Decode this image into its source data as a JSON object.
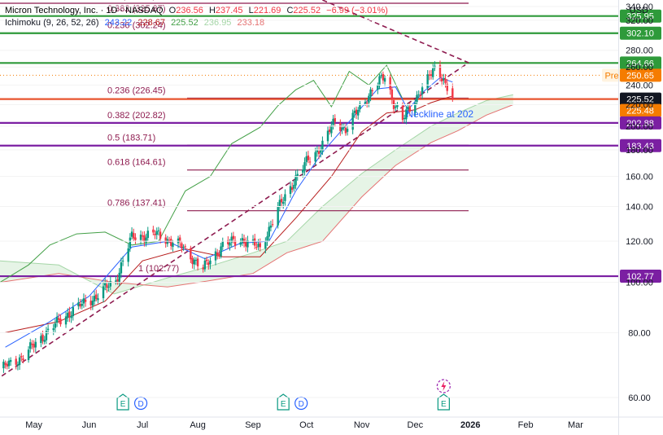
{
  "header": {
    "symbol_line": "Micron Technology, Inc. · 1D · NASDAQ",
    "ohlc": {
      "o_label": "O",
      "o": "236.56",
      "h_label": "H",
      "h": "237.45",
      "l_label": "L",
      "l": "221.69",
      "c_label": "C",
      "c": "225.52",
      "change": "−6.99 (−3.01%)"
    },
    "ichimoku_label": "Ichimoku (9, 26, 52, 26)",
    "ichimoku_values": [
      "243.22",
      "228.67",
      "225.52",
      "236.95",
      "233.18"
    ],
    "ichimoku_colors": [
      "#2962ff",
      "#b71c1c",
      "#43a047",
      "#a5d6a7",
      "#e57373"
    ]
  },
  "currency": "USD",
  "colors": {
    "up": "#089981",
    "down": "#f23645",
    "green_level": "#2e9a3a",
    "purple_level": "#7b1fa2",
    "maroon_level": "#8e1b4f",
    "orange": "#f57c00",
    "tenkan": "#2962ff",
    "kijun": "#b71c1c",
    "chikou": "#43a047",
    "cloud_fill": "#e6f4e6",
    "cloud_red_fill": "#fbe0e0",
    "trend": "#8e1b4f",
    "neckline_text": "#2962ff"
  },
  "chart_data": {
    "type": "candlestick",
    "title": "Micron Technology, Inc. · 1D · NASDAQ",
    "ylim": [
      55,
      350
    ],
    "y_scale": "log",
    "x_range": [
      "2025-04-12",
      "2026-03-25"
    ],
    "x_ticks": [
      {
        "label": "May",
        "date": "2025-05-01"
      },
      {
        "label": "Jun",
        "date": "2025-06-01"
      },
      {
        "label": "Jul",
        "date": "2025-07-01"
      },
      {
        "label": "Aug",
        "date": "2025-08-01"
      },
      {
        "label": "Sep",
        "date": "2025-09-01"
      },
      {
        "label": "Oct",
        "date": "2025-10-01"
      },
      {
        "label": "Nov",
        "date": "2025-11-01"
      },
      {
        "label": "Dec",
        "date": "2025-12-01"
      },
      {
        "label": "2026",
        "date": "2026-01-01"
      },
      {
        "label": "Feb",
        "date": "2026-02-01"
      },
      {
        "label": "Mar",
        "date": "2026-03-01"
      }
    ],
    "y_ticks": [
      60,
      80,
      100,
      120,
      140,
      160,
      180,
      200,
      220,
      240,
      260,
      280,
      320,
      340
    ],
    "close_anchors": [
      [
        "2025-04-12",
        68
      ],
      [
        "2025-04-25",
        72
      ],
      [
        "2025-05-08",
        80
      ],
      [
        "2025-05-22",
        88
      ],
      [
        "2025-06-05",
        94
      ],
      [
        "2025-06-16",
        101
      ],
      [
        "2025-06-25",
        122
      ],
      [
        "2025-07-08",
        124
      ],
      [
        "2025-07-22",
        118
      ],
      [
        "2025-08-04",
        106
      ],
      [
        "2025-08-15",
        118
      ],
      [
        "2025-08-26",
        121
      ],
      [
        "2025-09-05",
        116
      ],
      [
        "2025-09-15",
        138
      ],
      [
        "2025-09-24",
        157
      ],
      [
        "2025-10-02",
        172
      ],
      [
        "2025-10-10",
        184
      ],
      [
        "2025-10-17",
        205
      ],
      [
        "2025-10-23",
        197
      ],
      [
        "2025-11-01",
        220
      ],
      [
        "2025-11-07",
        235
      ],
      [
        "2025-11-14",
        250
      ],
      [
        "2025-11-19",
        222
      ],
      [
        "2025-11-24",
        205
      ],
      [
        "2025-12-01",
        226
      ],
      [
        "2025-12-08",
        245
      ],
      [
        "2025-12-13",
        262
      ],
      [
        "2025-12-16",
        250
      ],
      [
        "2025-12-19",
        237
      ],
      [
        "2025-12-22",
        225.52
      ]
    ],
    "tenkan_anchors": [
      [
        "2025-04-15",
        75
      ],
      [
        "2025-05-10",
        84
      ],
      [
        "2025-06-01",
        94
      ],
      [
        "2025-06-25",
        117
      ],
      [
        "2025-07-15",
        120
      ],
      [
        "2025-08-05",
        111
      ],
      [
        "2025-08-25",
        119
      ],
      [
        "2025-09-10",
        120
      ],
      [
        "2025-09-25",
        150
      ],
      [
        "2025-10-10",
        178
      ],
      [
        "2025-10-25",
        204
      ],
      [
        "2025-11-10",
        236
      ],
      [
        "2025-11-20",
        238
      ],
      [
        "2025-11-27",
        215
      ],
      [
        "2025-12-05",
        232
      ],
      [
        "2025-12-15",
        248
      ],
      [
        "2025-12-22",
        243.22
      ]
    ],
    "kijun_anchors": [
      [
        "2025-04-15",
        80
      ],
      [
        "2025-05-15",
        84
      ],
      [
        "2025-06-10",
        92
      ],
      [
        "2025-07-01",
        110
      ],
      [
        "2025-07-25",
        116
      ],
      [
        "2025-08-15",
        112
      ],
      [
        "2025-09-05",
        112
      ],
      [
        "2025-09-25",
        133
      ],
      [
        "2025-10-15",
        160
      ],
      [
        "2025-11-01",
        195
      ],
      [
        "2025-11-15",
        212
      ],
      [
        "2025-12-01",
        215
      ],
      [
        "2025-12-10",
        222
      ],
      [
        "2025-12-22",
        228.67
      ]
    ],
    "chikou_anchors": [
      [
        "2025-04-12",
        100
      ],
      [
        "2025-04-28",
        108
      ],
      [
        "2025-05-10",
        118
      ],
      [
        "2025-05-25",
        124
      ],
      [
        "2025-06-10",
        125
      ],
      [
        "2025-06-25",
        118
      ],
      [
        "2025-07-10",
        120
      ],
      [
        "2025-07-25",
        150
      ],
      [
        "2025-08-08",
        160
      ],
      [
        "2025-08-20",
        185
      ],
      [
        "2025-09-05",
        199
      ],
      [
        "2025-09-15",
        219
      ],
      [
        "2025-09-25",
        235
      ],
      [
        "2025-10-05",
        245
      ],
      [
        "2025-10-15",
        218
      ],
      [
        "2025-10-25",
        255
      ],
      [
        "2025-11-05",
        240
      ],
      [
        "2025-11-15",
        262
      ],
      [
        "2025-11-24",
        225.52
      ]
    ],
    "span_a_anchors": [
      [
        "2025-04-12",
        110
      ],
      [
        "2025-05-15",
        108
      ],
      [
        "2025-06-15",
        95
      ],
      [
        "2025-07-15",
        102
      ],
      [
        "2025-08-10",
        108
      ],
      [
        "2025-09-01",
        114
      ],
      [
        "2025-09-20",
        120
      ],
      [
        "2025-10-10",
        140
      ],
      [
        "2025-11-01",
        162
      ],
      [
        "2025-11-20",
        180
      ],
      [
        "2025-12-10",
        200
      ],
      [
        "2025-12-25",
        212
      ],
      [
        "2026-01-10",
        224
      ],
      [
        "2026-01-25",
        230
      ]
    ],
    "span_b_anchors": [
      [
        "2025-04-12",
        100
      ],
      [
        "2025-05-15",
        104
      ],
      [
        "2025-06-15",
        100
      ],
      [
        "2025-07-15",
        98
      ],
      [
        "2025-08-10",
        101
      ],
      [
        "2025-09-01",
        104
      ],
      [
        "2025-09-20",
        114
      ],
      [
        "2025-10-10",
        120
      ],
      [
        "2025-11-01",
        146
      ],
      [
        "2025-11-20",
        168
      ],
      [
        "2025-12-10",
        186
      ],
      [
        "2025-12-25",
        196
      ],
      [
        "2026-01-10",
        210
      ],
      [
        "2026-01-25",
        220
      ]
    ],
    "levels": [
      {
        "price": 325.95,
        "label": "325.95",
        "kind": "green"
      },
      {
        "price": 302.1,
        "label": "302.10",
        "kind": "green"
      },
      {
        "price": 264.66,
        "label": "264.66",
        "kind": "green"
      },
      {
        "price": 225.52,
        "label": "225.52",
        "kind": "last"
      },
      {
        "price": 225.48,
        "label": "225.48",
        "kind": "orange"
      },
      {
        "price": 202.88,
        "label": "202.88",
        "kind": "purple"
      },
      {
        "price": 183.43,
        "label": "183.43",
        "kind": "purple"
      },
      {
        "price": 102.77,
        "label": "102.77",
        "kind": "purple"
      }
    ],
    "premarket": {
      "label": "Pre",
      "price": 250.65,
      "text": "250.65"
    },
    "fib_levels": [
      {
        "label": "0.5 (344.97)",
        "price": 344.97,
        "start": "2025-04-12"
      },
      {
        "label": "0.382 (325.87)",
        "price": 325.87,
        "start": "2025-04-12"
      },
      {
        "label": "0.236 (302.24)",
        "price": 302.24,
        "start": "2025-04-12"
      },
      {
        "label": "0.236 (226.45)",
        "price": 226.45,
        "start": "2025-07-26"
      },
      {
        "label": "0.382 (202.82)",
        "price": 202.82,
        "start": "2025-07-26"
      },
      {
        "label": "0.5 (183.71)",
        "price": 183.71,
        "start": "2025-07-26"
      },
      {
        "label": "0.618 (164.61)",
        "price": 164.61,
        "start": "2025-07-26"
      },
      {
        "label": "0.786 (137.41)",
        "price": 137.41,
        "start": "2025-07-26"
      },
      {
        "label": "1 (102.77)",
        "price": 102.77,
        "start": "2025-07-26"
      }
    ],
    "fib_end": "2025-12-31",
    "trendlines": [
      {
        "from": [
          "2025-04-13",
          66
        ],
        "to": [
          "2025-12-31",
          265
        ]
      },
      {
        "from": [
          "2025-10-10",
          350
        ],
        "to": [
          "2025-12-31",
          265
        ]
      }
    ],
    "annotations": [
      {
        "text": "Neckline at 202",
        "date": "2025-11-26",
        "price": 208
      }
    ],
    "event_markers": [
      {
        "date": "2025-06-25",
        "icons": [
          "E",
          "D"
        ]
      },
      {
        "date": "2025-09-23",
        "icons": [
          "E",
          "D"
        ]
      },
      {
        "date": "2025-12-17",
        "icons": [
          "E"
        ]
      }
    ]
  }
}
